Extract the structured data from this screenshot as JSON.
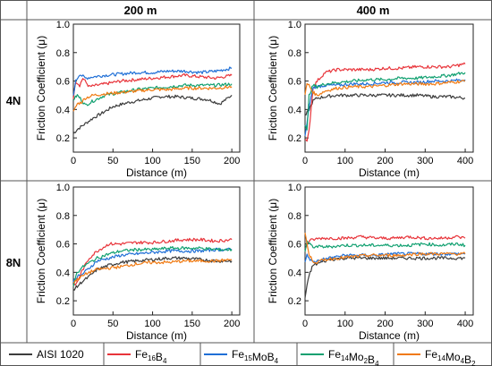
{
  "header": {
    "col1": "200 m",
    "col2": "400 m"
  },
  "rows": {
    "row1": "4N",
    "row2": "8N"
  },
  "axes_text": {
    "xlabel": "Distance (m)",
    "ylabel": "Friction Coefficient (μ)"
  },
  "legend": [
    {
      "name": "AISI 1020",
      "base": "AISI 1020",
      "parts": [
        [
          "AISI 1020",
          ""
        ]
      ],
      "color": "#3c3c3c"
    },
    {
      "name": "Fe16B4",
      "base": "Fe",
      "parts": [
        [
          "Fe",
          ""
        ],
        [
          "16",
          "sub"
        ],
        [
          "B",
          ""
        ],
        [
          "4",
          "sub"
        ]
      ],
      "color": "#e8343a"
    },
    {
      "name": "Fe15MoB4",
      "base": "Fe",
      "parts": [
        [
          "Fe",
          ""
        ],
        [
          "15",
          "sub"
        ],
        [
          "MoB",
          ""
        ],
        [
          "4",
          "sub"
        ]
      ],
      "color": "#1f6fd6"
    },
    {
      "name": "Fe14Mo2B4",
      "base": "Fe",
      "parts": [
        [
          "Fe",
          ""
        ],
        [
          "14",
          "sub"
        ],
        [
          "Mo",
          ""
        ],
        [
          "2",
          "sub"
        ],
        [
          "B",
          ""
        ],
        [
          "4",
          "sub"
        ]
      ],
      "color": "#10a070"
    },
    {
      "name": "Fe14Mo4B2",
      "base": "Fe",
      "parts": [
        [
          "Fe",
          ""
        ],
        [
          "14",
          "sub"
        ],
        [
          "Mo",
          ""
        ],
        [
          "4",
          "sub"
        ],
        [
          "B",
          ""
        ],
        [
          "2",
          "sub"
        ]
      ],
      "color": "#f07a12"
    }
  ],
  "chart_data": [
    {
      "type": "line",
      "panel": "4N / 200 m",
      "xlabel": "Distance (m)",
      "ylabel": "Friction Coefficient (μ)",
      "xlim": [
        0,
        210
      ],
      "ylim": [
        0.1,
        1.0
      ],
      "xticks": [
        0,
        50,
        100,
        150,
        200
      ],
      "yticks": [
        0.2,
        0.4,
        0.6,
        0.8,
        1.0
      ],
      "grid": false,
      "series": [
        {
          "name": "AISI 1020",
          "color": "#3c3c3c",
          "x": [
            0,
            5,
            15,
            25,
            35,
            50,
            70,
            90,
            110,
            130,
            150,
            170,
            185,
            200
          ],
          "y": [
            0.23,
            0.26,
            0.3,
            0.34,
            0.37,
            0.42,
            0.45,
            0.47,
            0.49,
            0.49,
            0.48,
            0.47,
            0.44,
            0.5
          ]
        },
        {
          "name": "Fe16B4",
          "color": "#e8343a",
          "x": [
            0,
            3,
            8,
            12,
            20,
            40,
            60,
            80,
            100,
            120,
            140,
            160,
            180,
            200
          ],
          "y": [
            0.48,
            0.6,
            0.57,
            0.62,
            0.56,
            0.58,
            0.6,
            0.61,
            0.62,
            0.63,
            0.64,
            0.63,
            0.62,
            0.64
          ]
        },
        {
          "name": "Fe15MoB4",
          "color": "#1f6fd6",
          "x": [
            0,
            3,
            8,
            15,
            25,
            40,
            60,
            80,
            100,
            120,
            140,
            160,
            180,
            200
          ],
          "y": [
            0.5,
            0.6,
            0.65,
            0.62,
            0.63,
            0.64,
            0.65,
            0.66,
            0.66,
            0.67,
            0.67,
            0.66,
            0.67,
            0.69
          ]
        },
        {
          "name": "Fe14Mo2B4",
          "color": "#10a070",
          "x": [
            0,
            5,
            10,
            15,
            25,
            40,
            60,
            80,
            100,
            120,
            140,
            160,
            180,
            200
          ],
          "y": [
            0.47,
            0.5,
            0.47,
            0.43,
            0.46,
            0.5,
            0.52,
            0.54,
            0.55,
            0.56,
            0.57,
            0.57,
            0.57,
            0.58
          ]
        },
        {
          "name": "Fe14Mo4B2",
          "color": "#f07a12",
          "x": [
            0,
            5,
            10,
            15,
            25,
            40,
            60,
            80,
            100,
            120,
            140,
            160,
            180,
            200
          ],
          "y": [
            0.38,
            0.44,
            0.45,
            0.48,
            0.5,
            0.51,
            0.52,
            0.53,
            0.54,
            0.54,
            0.55,
            0.55,
            0.55,
            0.56
          ]
        }
      ]
    },
    {
      "type": "line",
      "panel": "4N / 400 m",
      "xlabel": "Distance (m)",
      "ylabel": "Friction Coefficient (μ)",
      "xlim": [
        0,
        420
      ],
      "ylim": [
        0.1,
        1.0
      ],
      "xticks": [
        0,
        100,
        200,
        300,
        400
      ],
      "yticks": [
        0.2,
        0.4,
        0.6,
        0.8,
        1.0
      ],
      "grid": false,
      "series": [
        {
          "name": "AISI 1020",
          "color": "#3c3c3c",
          "x": [
            0,
            10,
            20,
            30,
            50,
            80,
            120,
            160,
            200,
            240,
            280,
            320,
            360,
            400
          ],
          "y": [
            0.35,
            0.4,
            0.46,
            0.48,
            0.49,
            0.5,
            0.5,
            0.5,
            0.5,
            0.5,
            0.5,
            0.49,
            0.49,
            0.48
          ]
        },
        {
          "name": "Fe16B4",
          "color": "#e8343a",
          "x": [
            0,
            5,
            10,
            20,
            30,
            50,
            80,
            120,
            160,
            200,
            240,
            280,
            320,
            360,
            400
          ],
          "y": [
            0.2,
            0.17,
            0.25,
            0.55,
            0.6,
            0.66,
            0.68,
            0.68,
            0.68,
            0.69,
            0.69,
            0.7,
            0.7,
            0.7,
            0.72
          ]
        },
        {
          "name": "Fe15MoB4",
          "color": "#1f6fd6",
          "x": [
            0,
            5,
            10,
            20,
            30,
            50,
            80,
            120,
            160,
            200,
            240,
            280,
            320,
            360,
            400
          ],
          "y": [
            0.22,
            0.3,
            0.42,
            0.55,
            0.56,
            0.57,
            0.57,
            0.58,
            0.58,
            0.59,
            0.59,
            0.59,
            0.6,
            0.6,
            0.61
          ]
        },
        {
          "name": "Fe14Mo2B4",
          "color": "#10a070",
          "x": [
            0,
            5,
            10,
            20,
            30,
            50,
            80,
            120,
            160,
            200,
            240,
            280,
            320,
            360,
            400
          ],
          "y": [
            0.3,
            0.25,
            0.5,
            0.57,
            0.56,
            0.58,
            0.59,
            0.6,
            0.61,
            0.61,
            0.62,
            0.62,
            0.63,
            0.64,
            0.66
          ]
        },
        {
          "name": "Fe14Mo4B2",
          "color": "#f07a12",
          "x": [
            0,
            5,
            10,
            20,
            30,
            50,
            80,
            120,
            160,
            200,
            240,
            280,
            320,
            360,
            400
          ],
          "y": [
            0.5,
            0.58,
            0.57,
            0.52,
            0.5,
            0.53,
            0.55,
            0.56,
            0.56,
            0.57,
            0.58,
            0.58,
            0.58,
            0.59,
            0.6
          ]
        }
      ]
    },
    {
      "type": "line",
      "panel": "8N / 200 m",
      "xlabel": "Distance (m)",
      "ylabel": "Friction Coefficient (μ)",
      "xlim": [
        0,
        210
      ],
      "ylim": [
        0.1,
        1.0
      ],
      "xticks": [
        0,
        50,
        100,
        150,
        200
      ],
      "yticks": [
        0.2,
        0.4,
        0.6,
        0.8,
        1.0
      ],
      "grid": false,
      "series": [
        {
          "name": "AISI 1020",
          "color": "#3c3c3c",
          "x": [
            0,
            5,
            10,
            20,
            30,
            45,
            60,
            80,
            100,
            120,
            140,
            160,
            180,
            200
          ],
          "y": [
            0.28,
            0.3,
            0.33,
            0.37,
            0.42,
            0.45,
            0.47,
            0.48,
            0.49,
            0.5,
            0.5,
            0.49,
            0.48,
            0.48
          ]
        },
        {
          "name": "Fe16B4",
          "color": "#e8343a",
          "x": [
            0,
            5,
            10,
            20,
            30,
            45,
            60,
            80,
            100,
            120,
            140,
            160,
            180,
            200
          ],
          "y": [
            0.3,
            0.33,
            0.4,
            0.5,
            0.55,
            0.6,
            0.6,
            0.61,
            0.61,
            0.62,
            0.63,
            0.63,
            0.62,
            0.63
          ]
        },
        {
          "name": "Fe15MoB4",
          "color": "#1f6fd6",
          "x": [
            0,
            5,
            10,
            20,
            30,
            45,
            60,
            80,
            100,
            120,
            140,
            160,
            180,
            200
          ],
          "y": [
            0.34,
            0.37,
            0.38,
            0.43,
            0.48,
            0.5,
            0.52,
            0.53,
            0.54,
            0.55,
            0.55,
            0.55,
            0.56,
            0.56
          ]
        },
        {
          "name": "Fe14Mo2B4",
          "color": "#10a070",
          "x": [
            0,
            3,
            8,
            15,
            30,
            45,
            60,
            80,
            100,
            120,
            140,
            160,
            180,
            200
          ],
          "y": [
            0.3,
            0.38,
            0.42,
            0.45,
            0.5,
            0.53,
            0.55,
            0.56,
            0.56,
            0.57,
            0.57,
            0.57,
            0.56,
            0.56
          ]
        },
        {
          "name": "Fe14Mo4B2",
          "color": "#f07a12",
          "x": [
            0,
            5,
            10,
            20,
            30,
            45,
            60,
            80,
            100,
            120,
            140,
            160,
            180,
            200
          ],
          "y": [
            0.33,
            0.35,
            0.37,
            0.4,
            0.42,
            0.43,
            0.44,
            0.46,
            0.47,
            0.47,
            0.48,
            0.48,
            0.48,
            0.49
          ]
        }
      ]
    },
    {
      "type": "line",
      "panel": "8N / 400 m",
      "xlabel": "Distance (m)",
      "ylabel": "Friction Coefficient (μ)",
      "xlim": [
        0,
        420
      ],
      "ylim": [
        0.1,
        1.0
      ],
      "xticks": [
        0,
        100,
        200,
        300,
        400
      ],
      "yticks": [
        0.2,
        0.4,
        0.6,
        0.8,
        1.0
      ],
      "grid": false,
      "series": [
        {
          "name": "AISI 1020",
          "color": "#3c3c3c",
          "x": [
            0,
            5,
            10,
            20,
            40,
            60,
            100,
            140,
            180,
            220,
            260,
            300,
            340,
            380,
            400
          ],
          "y": [
            0.22,
            0.3,
            0.38,
            0.45,
            0.47,
            0.49,
            0.5,
            0.5,
            0.5,
            0.5,
            0.5,
            0.5,
            0.5,
            0.5,
            0.5
          ]
        },
        {
          "name": "Fe16B4",
          "color": "#e8343a",
          "x": [
            0,
            5,
            10,
            20,
            40,
            60,
            100,
            140,
            180,
            220,
            260,
            300,
            340,
            380,
            400
          ],
          "y": [
            0.56,
            0.6,
            0.62,
            0.63,
            0.64,
            0.64,
            0.64,
            0.65,
            0.64,
            0.64,
            0.65,
            0.64,
            0.64,
            0.65,
            0.64
          ]
        },
        {
          "name": "Fe15MoB4",
          "color": "#1f6fd6",
          "x": [
            0,
            5,
            10,
            20,
            40,
            60,
            100,
            140,
            180,
            220,
            260,
            300,
            340,
            380,
            400
          ],
          "y": [
            0.48,
            0.52,
            0.5,
            0.47,
            0.49,
            0.5,
            0.52,
            0.52,
            0.52,
            0.53,
            0.53,
            0.53,
            0.53,
            0.53,
            0.53
          ]
        },
        {
          "name": "Fe14Mo2B4",
          "color": "#10a070",
          "x": [
            0,
            5,
            10,
            20,
            40,
            60,
            100,
            140,
            180,
            220,
            260,
            300,
            340,
            380,
            400
          ],
          "y": [
            0.55,
            0.62,
            0.6,
            0.58,
            0.58,
            0.58,
            0.59,
            0.59,
            0.59,
            0.59,
            0.59,
            0.6,
            0.59,
            0.6,
            0.59
          ]
        },
        {
          "name": "Fe14Mo4B2",
          "color": "#f07a12",
          "x": [
            0,
            5,
            10,
            20,
            30,
            50,
            80,
            120,
            160,
            200,
            240,
            280,
            320,
            360,
            400
          ],
          "y": [
            0.68,
            0.6,
            0.52,
            0.48,
            0.47,
            0.49,
            0.5,
            0.51,
            0.52,
            0.52,
            0.52,
            0.53,
            0.53,
            0.53,
            0.53
          ]
        }
      ]
    }
  ]
}
